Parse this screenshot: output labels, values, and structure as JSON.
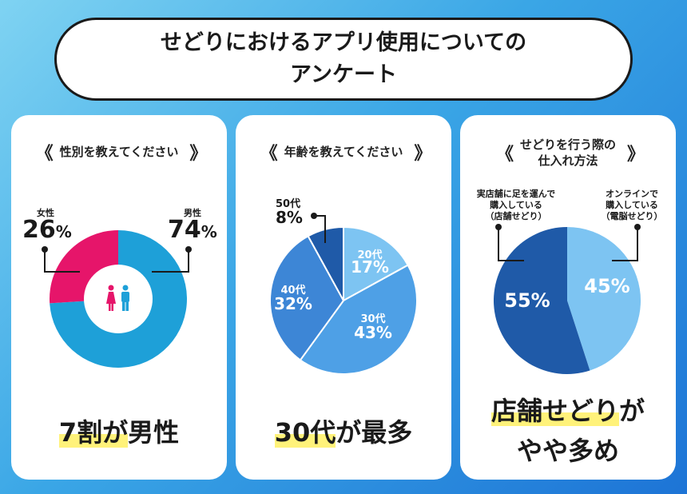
{
  "title": {
    "line1": "せどりにおけるアプリ使用についての",
    "line2": "アンケート"
  },
  "colors": {
    "pink": "#e6156a",
    "cyan": "#1ea0d8",
    "blue1": "#7dc4f2",
    "blue2": "#4ea0e6",
    "blue3": "#3d86d6",
    "blue4": "#1f5aa8",
    "store": "#1f5aa8",
    "online": "#7dc4f2",
    "highlight": "#fff27a"
  },
  "cards": [
    {
      "question": "性別を教えてください",
      "icon": "people-icon",
      "labels": {
        "female_name": "女性",
        "female_pct": "26",
        "male_name": "男性",
        "male_pct": "74",
        "pct_sign": "%"
      },
      "conclusion": {
        "hl": "7割が",
        "rest": "男性"
      }
    },
    {
      "question": "年齢を教えてください",
      "labels": {
        "a20_name": "20代",
        "a20_pct": "17%",
        "a30_name": "30代",
        "a30_pct": "43%",
        "a40_name": "40代",
        "a40_pct": "32%",
        "a50_name": "50代",
        "a50_pct": "8%"
      },
      "conclusion": {
        "hl": "30代",
        "rest": "が最多"
      }
    },
    {
      "question": "せどりを行う際の\n仕入れ方法",
      "labels": {
        "store_desc": "実店舗に足を運んで\n購入している\n（店舗せどり）",
        "online_desc": "オンラインで\n購入している\n（電脳せどり）",
        "store_pct": "55%",
        "online_pct": "45%"
      },
      "conclusion": {
        "hl": "店舗せどり",
        "rest": "が",
        "line2": "やや多め"
      }
    }
  ],
  "chart_data": [
    {
      "type": "pie",
      "title": "性別を教えてください",
      "categories": [
        "男性",
        "女性"
      ],
      "values": [
        74,
        26
      ],
      "donut": true
    },
    {
      "type": "pie",
      "title": "年齢を教えてください",
      "categories": [
        "20代",
        "30代",
        "40代",
        "50代"
      ],
      "values": [
        17,
        43,
        32,
        8
      ]
    },
    {
      "type": "pie",
      "title": "せどりを行う際の仕入れ方法",
      "categories": [
        "電脳せどり",
        "店舗せどり"
      ],
      "values": [
        45,
        55
      ]
    }
  ]
}
